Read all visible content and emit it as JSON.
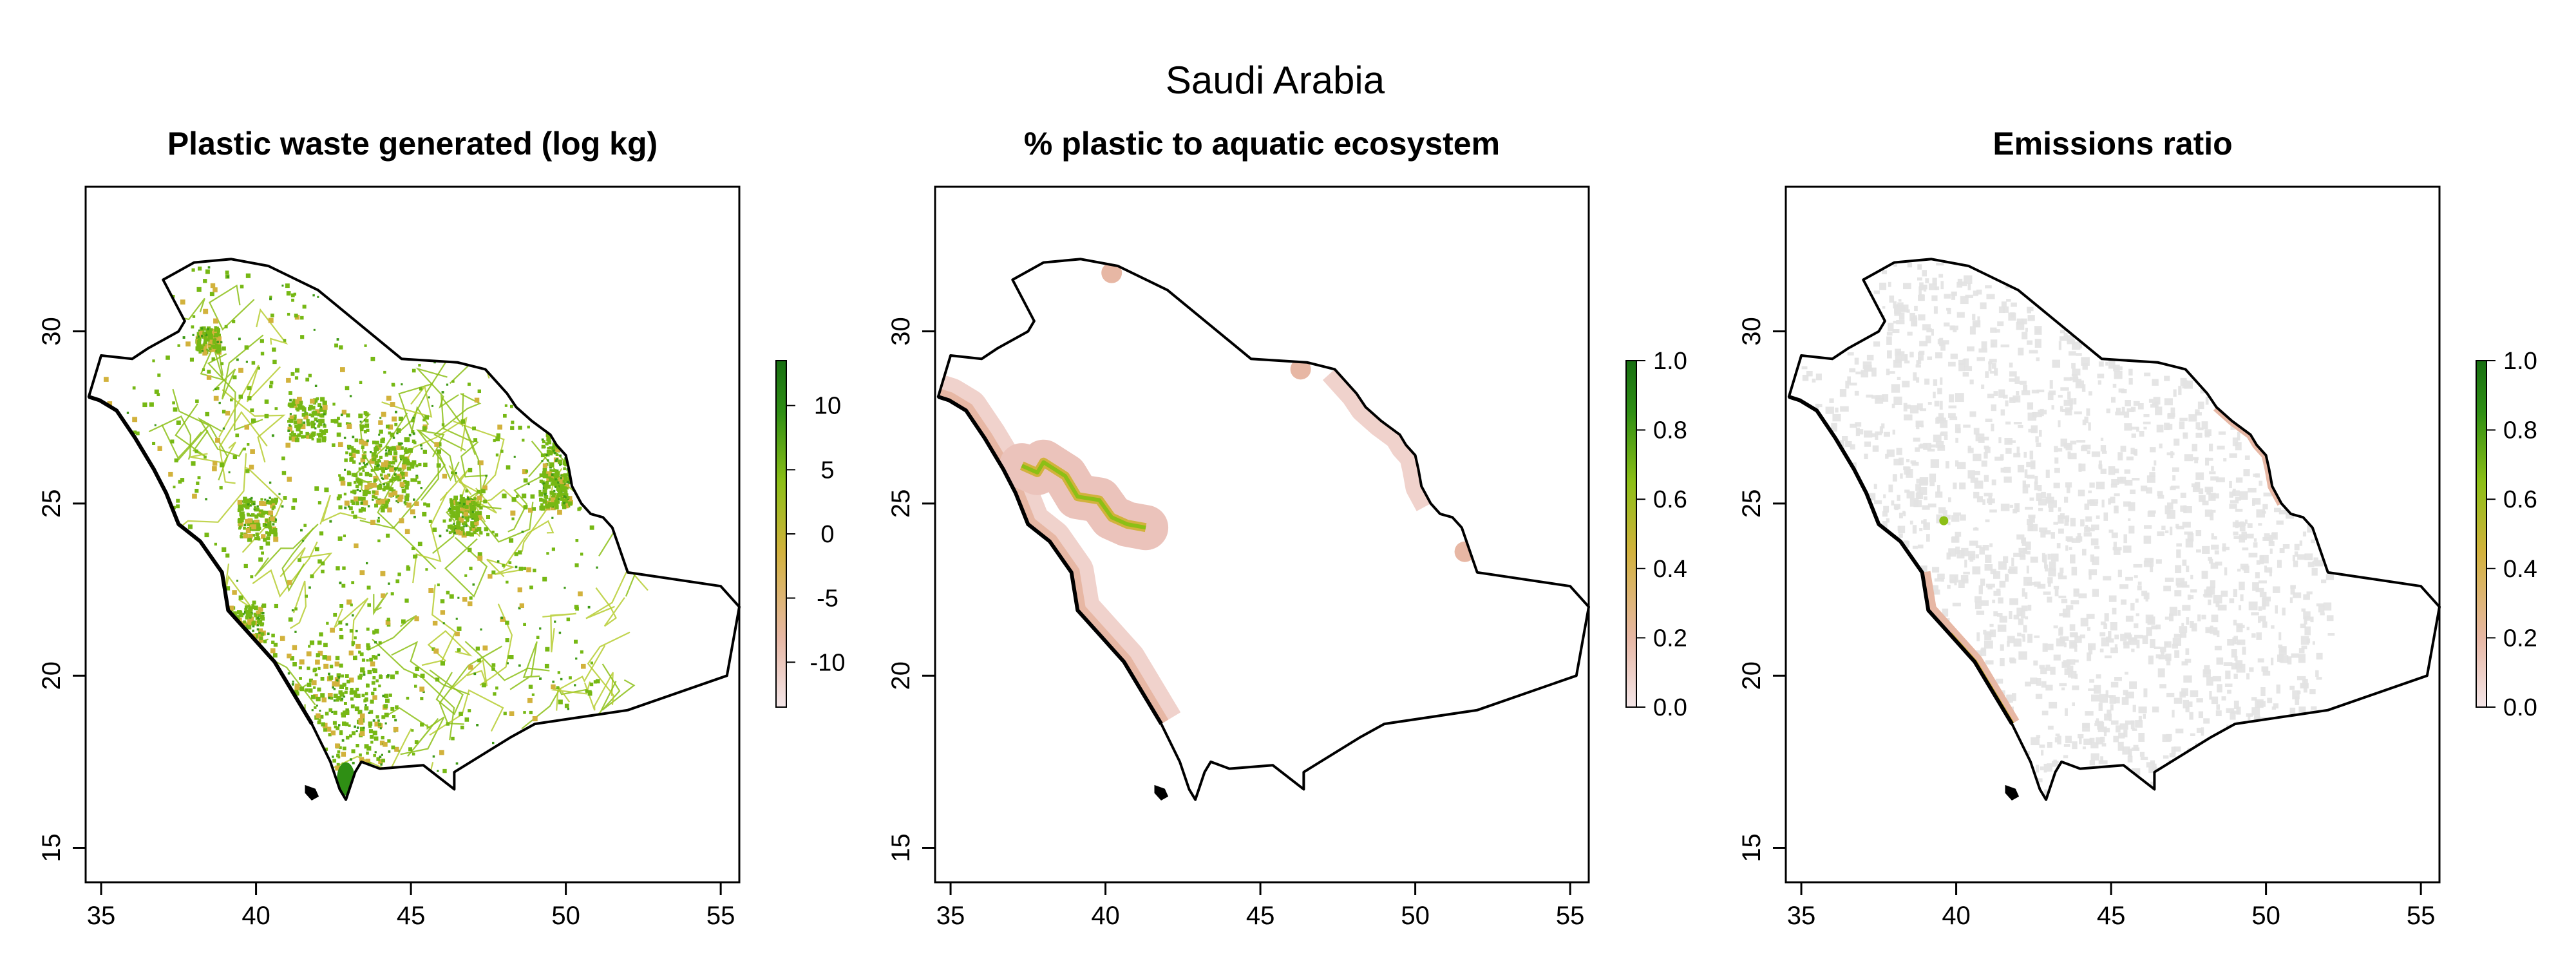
{
  "figure_title": "Saudi Arabia",
  "panels": [
    {
      "title": "Plastic waste generated (log kg)",
      "legend": {
        "type": "colorbar",
        "ticks": [
          "10",
          "5",
          "0",
          "-5",
          "-10"
        ],
        "colors": [
          "#f4e6e8",
          "#e7b7a4",
          "#d2b23c",
          "#8cbf16",
          "#2f8f14",
          "#176f12"
        ]
      },
      "layer": "waste"
    },
    {
      "title": "% plastic to aquatic ecosystem",
      "legend": {
        "type": "colorbar",
        "ticks": [
          "1.0",
          "0.8",
          "0.6",
          "0.4",
          "0.2",
          "0.0"
        ],
        "colors": [
          "#f4e6e8",
          "#e7b7a4",
          "#d2b23c",
          "#8cbf16",
          "#2f8f14",
          "#176f12"
        ]
      },
      "layer": "aquatic"
    },
    {
      "title": "Emissions ratio",
      "legend": {
        "type": "colorbar",
        "ticks": [
          "1.0",
          "0.8",
          "0.6",
          "0.4",
          "0.2",
          "0.0"
        ],
        "colors": [
          "#f4e6e8",
          "#e7b7a4",
          "#d2b23c",
          "#8cbf16",
          "#2f8f14",
          "#176f12"
        ]
      },
      "layer": "emissions"
    }
  ],
  "axes": {
    "x_ticks": [
      "35",
      "40",
      "45",
      "50",
      "55"
    ],
    "y_ticks": [
      "15",
      "20",
      "25",
      "30"
    ],
    "x_range": [
      34.5,
      55.6
    ],
    "y_range": [
      14.0,
      34.2
    ]
  },
  "colors": {
    "outline": "#000000",
    "background": "#ffffff",
    "grey_layer": "#e2e2e2"
  }
}
